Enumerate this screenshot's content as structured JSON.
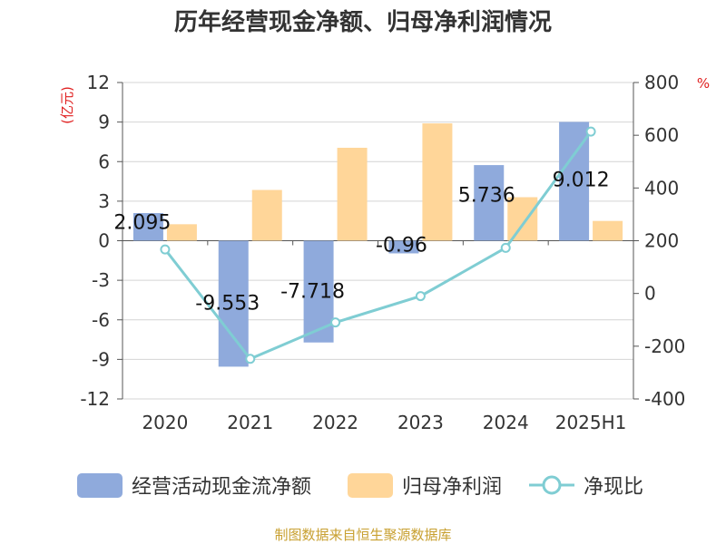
{
  "chart_data": {
    "type": "bar",
    "title": "历年经营现金净额、归母净利润情况",
    "categories": [
      "2020",
      "2021",
      "2022",
      "2023",
      "2024",
      "2025H1"
    ],
    "left_axis": {
      "unit": "(亿元)",
      "ylim": [
        -12,
        12
      ],
      "ticks": [
        12,
        9,
        6,
        3,
        0,
        -3,
        -6,
        -9,
        -12
      ],
      "tick_labels": [
        "12",
        "9",
        "6",
        "3",
        "0",
        "-3",
        "-6",
        "-9",
        "-12"
      ]
    },
    "right_axis": {
      "unit": "%",
      "ylim": [
        -400,
        800
      ],
      "ticks": [
        800,
        600,
        400,
        200,
        0,
        -200,
        -400
      ],
      "tick_labels": [
        "800",
        "600",
        "400",
        "200",
        "0",
        "-200",
        "-400"
      ]
    },
    "series": [
      {
        "name": "经营活动现金流净额",
        "type": "bar",
        "axis": "left",
        "values": [
          2.095,
          -9.553,
          -7.718,
          -0.96,
          5.736,
          9.012
        ],
        "labels": [
          "2.095",
          "-9.553",
          "-7.718",
          "-0.96",
          "5.736",
          "9.012"
        ]
      },
      {
        "name": "归母净利润",
        "type": "bar",
        "axis": "left",
        "values": [
          1.25,
          3.85,
          7.05,
          8.9,
          3.3,
          1.5
        ]
      },
      {
        "name": "净现比",
        "type": "line",
        "axis": "right",
        "values": [
          167,
          -248,
          -110,
          -10,
          173,
          614
        ]
      }
    ],
    "grid": true,
    "legend_position": "bottom",
    "source": "制图数据来自恒生聚源数据库",
    "colors": {
      "cashflow": "#8faadc",
      "profit": "#ffd699",
      "ratio": "#7fcdd3",
      "title": "#333333",
      "unit": "#e02020",
      "source": "#c8a030"
    }
  }
}
